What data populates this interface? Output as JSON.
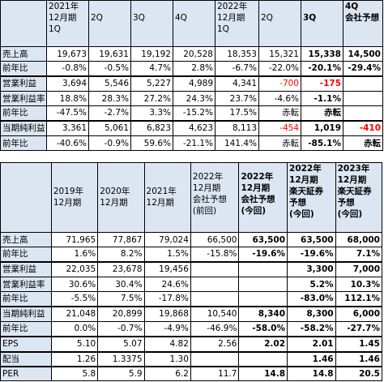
{
  "table1": {
    "headers": [
      [
        "",
        "",
        ""
      ],
      [
        "2021年",
        "12月期",
        "1Q"
      ],
      [
        "2Q",
        "",
        ""
      ],
      [
        "3Q",
        "",
        ""
      ],
      [
        "4Q",
        "",
        ""
      ],
      [
        "2022年",
        "12月期",
        "1Q"
      ],
      [
        "2Q",
        "",
        ""
      ],
      [
        "3Q",
        "",
        ""
      ],
      [
        "4Q",
        "会社予想",
        ""
      ]
    ],
    "rows": [
      {
        "label": "売上高",
        "vals": [
          "19,673",
          "19,631",
          "19,192",
          "20,528",
          "18,353",
          "15,321",
          "15,338",
          "14,500"
        ]
      },
      {
        "label": "前年比",
        "vals": [
          "-0.8%",
          "-0.5%",
          "4.7%",
          "2.8%",
          "-6.7%",
          "-22.0%",
          "-20.1%",
          "-29.4%"
        ]
      },
      {
        "label": "営業利益",
        "vals": [
          "3,694",
          "5,546",
          "5,227",
          "4,989",
          "4,341",
          "-700",
          "-175",
          ""
        ]
      },
      {
        "label": "営業利益率",
        "vals": [
          "18.8%",
          "28.3%",
          "27.2%",
          "24.3%",
          "23.7%",
          "-4.6%",
          "-1.1%",
          ""
        ]
      },
      {
        "label": "前年比",
        "vals": [
          "-47.5%",
          "-2.7%",
          "3.3%",
          "-15.2%",
          "17.5%",
          "赤転",
          "赤転",
          ""
        ]
      },
      {
        "label": "当期純利益",
        "vals": [
          "3,361",
          "5,061",
          "6,823",
          "4,623",
          "8,113",
          "-454",
          "1,019",
          "-410"
        ]
      },
      {
        "label": "前年比",
        "vals": [
          "-40.6%",
          "-0.9%",
          "59.6%",
          "-21.1%",
          "141.4%",
          "赤転",
          "-85.1%",
          "赤転"
        ]
      }
    ]
  },
  "table2": {
    "headers": [
      [
        "",
        "",
        "",
        ""
      ],
      [
        "2019年",
        "12月期",
        "",
        ""
      ],
      [
        "2020年",
        "12月期",
        "",
        ""
      ],
      [
        "2021年",
        "12月期",
        "",
        ""
      ],
      [
        "2022年",
        "12月期",
        "会社予想",
        "(前回)"
      ],
      [
        "2022年",
        "12月期",
        "会社予想",
        "(今回)"
      ],
      [
        "2022年",
        "12月期",
        "楽天証券",
        "予想",
        "(今回)"
      ],
      [
        "2023年",
        "12月期",
        "楽天証券",
        "予想",
        "(今回)"
      ]
    ],
    "rows": [
      {
        "label": "売上高",
        "vals": [
          "71,965",
          "77,867",
          "79,024",
          "66,500",
          "63,500",
          "63,500",
          "68,000"
        ]
      },
      {
        "label": "前年比",
        "vals": [
          "1.6%",
          "8.2%",
          "1.5%",
          "-15.8%",
          "-19.6%",
          "-19.6%",
          "7.1%"
        ]
      },
      {
        "label": "営業利益",
        "vals": [
          "22,035",
          "23,678",
          "19,456",
          "",
          "",
          "3,300",
          "7,000"
        ]
      },
      {
        "label": "営業利益率",
        "vals": [
          "30.6%",
          "30.4%",
          "24.6%",
          "",
          "",
          "5.2%",
          "10.3%"
        ]
      },
      {
        "label": "前年比",
        "vals": [
          "-5.5%",
          "7.5%",
          "-17.8%",
          "",
          "",
          "-83.0%",
          "112.1%"
        ]
      },
      {
        "label": "当期純利益",
        "vals": [
          "21,048",
          "20,899",
          "19,868",
          "10,540",
          "8,340",
          "8,300",
          "6,000"
        ]
      },
      {
        "label": "前年比",
        "vals": [
          "0.0%",
          "-0.7%",
          "-4.9%",
          "-46.9%",
          "-58.0%",
          "-58.2%",
          "-27.7%"
        ]
      },
      {
        "label": "EPS",
        "vals": [
          "5.10",
          "5.07",
          "4.82",
          "2.56",
          "2.02",
          "2.01",
          "1.45"
        ]
      },
      {
        "label": "配当",
        "vals": [
          "1.26",
          "1.3375",
          "1.30",
          "",
          "",
          "1.46",
          "1.46"
        ]
      },
      {
        "label": "PER",
        "vals": [
          "5.8",
          "5.9",
          "6.2",
          "11.7",
          "14.8",
          "14.8",
          "20.5"
        ]
      }
    ]
  },
  "colors": {
    "header_bg": "#dce6f2",
    "negative": "#ff0000",
    "border": "#000000"
  }
}
